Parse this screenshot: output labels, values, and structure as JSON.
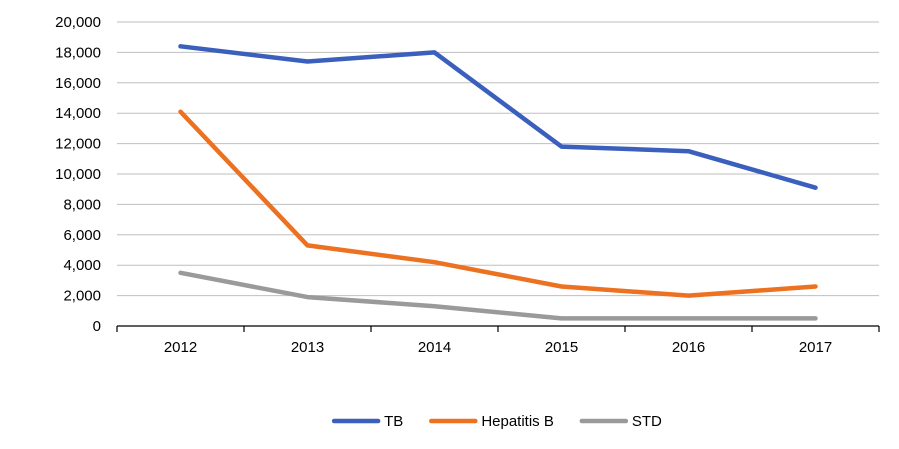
{
  "chart_data": {
    "type": "line",
    "title": "",
    "xlabel": "",
    "ylabel": "",
    "categories": [
      "2012",
      "2013",
      "2014",
      "2015",
      "2016",
      "2017"
    ],
    "ylim": [
      0,
      20000
    ],
    "yticks": [
      0,
      2000,
      4000,
      6000,
      8000,
      10000,
      12000,
      14000,
      16000,
      18000,
      20000
    ],
    "ytick_labels": [
      "0",
      "2,000",
      "4,000",
      "6,000",
      "8,000",
      "10,000",
      "12,000",
      "14,000",
      "16,000",
      "18,000",
      "20,000"
    ],
    "grid": "horizontal",
    "legend_position": "bottom-center",
    "series": [
      {
        "name": "TB",
        "color": "#3a5fbd",
        "values": [
          18400,
          17400,
          18000,
          11800,
          11500,
          9100
        ]
      },
      {
        "name": "Hepatitis B",
        "color": "#ec7120",
        "values": [
          14100,
          5300,
          4200,
          2600,
          2000,
          2600
        ]
      },
      {
        "name": "STD",
        "color": "#9a9a9a",
        "values": [
          3500,
          1900,
          1300,
          500,
          500,
          500
        ]
      }
    ]
  }
}
